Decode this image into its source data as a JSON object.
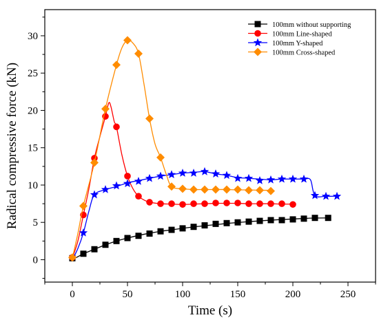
{
  "chart_data": {
    "type": "line",
    "xlabel": "Time (s)",
    "ylabel": "Radical compressive force (kN)",
    "xlim": [
      -25,
      275
    ],
    "ylim": [
      -3,
      33.5
    ],
    "xticks": [
      0,
      50,
      100,
      150,
      200,
      250
    ],
    "yticks": [
      0,
      5,
      10,
      15,
      20,
      25,
      30
    ],
    "grid": false,
    "legend_position": "top-right",
    "series": [
      {
        "name": "100mm without supporting",
        "color": "#000000",
        "marker": "square",
        "curve": [
          [
            0,
            0
          ],
          [
            5,
            0.4
          ],
          [
            10,
            0.8
          ],
          [
            15,
            1.1
          ],
          [
            20,
            1.4
          ],
          [
            25,
            1.7
          ],
          [
            30,
            2.0
          ],
          [
            40,
            2.5
          ],
          [
            50,
            2.9
          ],
          [
            60,
            3.25
          ],
          [
            70,
            3.55
          ],
          [
            80,
            3.8
          ],
          [
            90,
            4.0
          ],
          [
            100,
            4.2
          ],
          [
            110,
            4.4
          ],
          [
            120,
            4.55
          ],
          [
            130,
            4.7
          ],
          [
            140,
            4.85
          ],
          [
            150,
            4.98
          ],
          [
            160,
            5.1
          ],
          [
            170,
            5.2
          ],
          [
            180,
            5.3
          ],
          [
            190,
            5.38
          ],
          [
            200,
            5.45
          ],
          [
            210,
            5.52
          ],
          [
            220,
            5.58
          ],
          [
            232,
            5.6
          ]
        ],
        "markers": [
          [
            0,
            0.2
          ],
          [
            10,
            0.8
          ],
          [
            20,
            1.4
          ],
          [
            30,
            2.0
          ],
          [
            40,
            2.5
          ],
          [
            50,
            2.9
          ],
          [
            60,
            3.2
          ],
          [
            70,
            3.5
          ],
          [
            80,
            3.8
          ],
          [
            90,
            4.0
          ],
          [
            100,
            4.2
          ],
          [
            110,
            4.4
          ],
          [
            120,
            4.6
          ],
          [
            130,
            4.8
          ],
          [
            140,
            4.9
          ],
          [
            150,
            5.0
          ],
          [
            160,
            5.1
          ],
          [
            170,
            5.2
          ],
          [
            180,
            5.3
          ],
          [
            190,
            5.3
          ],
          [
            200,
            5.4
          ],
          [
            210,
            5.5
          ],
          [
            220,
            5.6
          ],
          [
            232,
            5.6
          ]
        ]
      },
      {
        "name": "100mm Line-shaped",
        "color": "#ff0000",
        "marker": "circle",
        "curve": [
          [
            0,
            0.2
          ],
          [
            5,
            2.5
          ],
          [
            10,
            6.0
          ],
          [
            15,
            9.5
          ],
          [
            20,
            13.6
          ],
          [
            25,
            16.5
          ],
          [
            30,
            19.2
          ],
          [
            33,
            21.0
          ],
          [
            35,
            20.5
          ],
          [
            38,
            18.5
          ],
          [
            40,
            17.8
          ],
          [
            45,
            14.0
          ],
          [
            50,
            11.2
          ],
          [
            55,
            9.5
          ],
          [
            60,
            8.5
          ],
          [
            65,
            8.0
          ],
          [
            70,
            7.7
          ],
          [
            80,
            7.5
          ],
          [
            90,
            7.45
          ],
          [
            100,
            7.4
          ],
          [
            110,
            7.45
          ],
          [
            120,
            7.5
          ],
          [
            130,
            7.55
          ],
          [
            140,
            7.55
          ],
          [
            150,
            7.55
          ],
          [
            160,
            7.5
          ],
          [
            170,
            7.5
          ],
          [
            180,
            7.5
          ],
          [
            190,
            7.45
          ],
          [
            200,
            7.45
          ]
        ],
        "markers": [
          [
            0,
            0.3
          ],
          [
            10,
            6.0
          ],
          [
            20,
            13.6
          ],
          [
            30,
            19.2
          ],
          [
            40,
            17.8
          ],
          [
            50,
            11.2
          ],
          [
            60,
            8.5
          ],
          [
            70,
            7.7
          ],
          [
            80,
            7.5
          ],
          [
            90,
            7.5
          ],
          [
            100,
            7.4
          ],
          [
            110,
            7.5
          ],
          [
            120,
            7.5
          ],
          [
            130,
            7.6
          ],
          [
            140,
            7.6
          ],
          [
            150,
            7.6
          ],
          [
            160,
            7.5
          ],
          [
            170,
            7.5
          ],
          [
            180,
            7.5
          ],
          [
            190,
            7.5
          ],
          [
            200,
            7.4
          ]
        ]
      },
      {
        "name": "100mm Y-shaped",
        "color": "#0000ff",
        "marker": "star",
        "curve": [
          [
            0,
            0
          ],
          [
            5,
            1.5
          ],
          [
            10,
            3.6
          ],
          [
            15,
            6.5
          ],
          [
            20,
            8.7
          ],
          [
            30,
            9.4
          ],
          [
            40,
            9.8
          ],
          [
            50,
            10.3
          ],
          [
            60,
            10.6
          ],
          [
            70,
            10.9
          ],
          [
            80,
            11.2
          ],
          [
            90,
            11.4
          ],
          [
            100,
            11.6
          ],
          [
            110,
            11.7
          ],
          [
            120,
            11.8
          ],
          [
            130,
            11.5
          ],
          [
            140,
            11.3
          ],
          [
            150,
            11.0
          ],
          [
            160,
            10.9
          ],
          [
            170,
            10.8
          ],
          [
            180,
            10.7
          ],
          [
            190,
            10.8
          ],
          [
            200,
            10.8
          ],
          [
            210,
            10.8
          ],
          [
            216,
            10.7
          ],
          [
            220,
            8.6
          ],
          [
            230,
            8.5
          ],
          [
            240,
            8.5
          ]
        ],
        "markers": [
          [
            10,
            3.6
          ],
          [
            20,
            8.7
          ],
          [
            30,
            9.4
          ],
          [
            40,
            9.9
          ],
          [
            50,
            10.2
          ],
          [
            60,
            10.5
          ],
          [
            70,
            10.9
          ],
          [
            80,
            11.2
          ],
          [
            90,
            11.4
          ],
          [
            100,
            11.6
          ],
          [
            110,
            11.6
          ],
          [
            120,
            11.8
          ],
          [
            130,
            11.5
          ],
          [
            140,
            11.3
          ],
          [
            150,
            10.9
          ],
          [
            160,
            10.9
          ],
          [
            170,
            10.6
          ],
          [
            180,
            10.7
          ],
          [
            190,
            10.8
          ],
          [
            200,
            10.8
          ],
          [
            210,
            10.8
          ],
          [
            220,
            8.6
          ],
          [
            230,
            8.5
          ],
          [
            240,
            8.5
          ]
        ]
      },
      {
        "name": "100mm Cross-shaped",
        "color": "#ff8c00",
        "marker": "diamond",
        "curve": [
          [
            0,
            0.2
          ],
          [
            5,
            3.5
          ],
          [
            10,
            7.2
          ],
          [
            20,
            13.0
          ],
          [
            30,
            20.2
          ],
          [
            40,
            26.1
          ],
          [
            45,
            28.4
          ],
          [
            50,
            29.4
          ],
          [
            55,
            29.0
          ],
          [
            60,
            27.6
          ],
          [
            65,
            23.5
          ],
          [
            70,
            18.9
          ],
          [
            75,
            15.5
          ],
          [
            80,
            13.7
          ],
          [
            85,
            11.5
          ],
          [
            90,
            9.8
          ],
          [
            100,
            9.5
          ],
          [
            110,
            9.4
          ],
          [
            120,
            9.4
          ],
          [
            130,
            9.4
          ],
          [
            140,
            9.4
          ],
          [
            150,
            9.35
          ],
          [
            160,
            9.35
          ],
          [
            170,
            9.3
          ],
          [
            180,
            9.3
          ]
        ],
        "markers": [
          [
            0,
            0.3
          ],
          [
            10,
            7.2
          ],
          [
            20,
            13.0
          ],
          [
            30,
            20.2
          ],
          [
            40,
            26.1
          ],
          [
            50,
            29.4
          ],
          [
            60,
            27.6
          ],
          [
            70,
            18.9
          ],
          [
            80,
            13.7
          ],
          [
            90,
            9.8
          ],
          [
            100,
            9.5
          ],
          [
            110,
            9.4
          ],
          [
            120,
            9.4
          ],
          [
            130,
            9.4
          ],
          [
            140,
            9.4
          ],
          [
            150,
            9.4
          ],
          [
            160,
            9.3
          ],
          [
            170,
            9.3
          ],
          [
            180,
            9.2
          ]
        ]
      }
    ]
  }
}
